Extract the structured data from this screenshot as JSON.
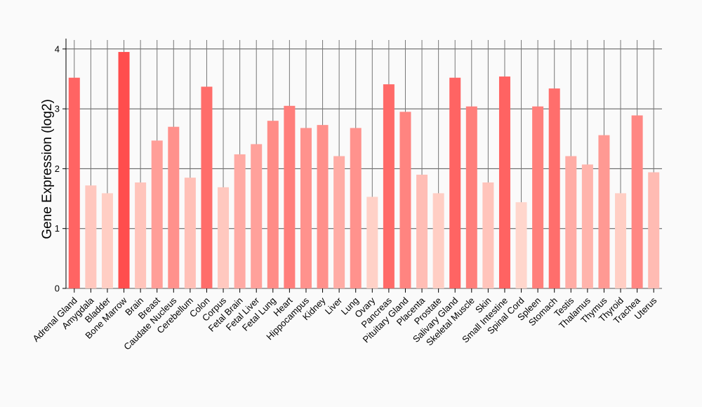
{
  "chart_data": {
    "type": "bar",
    "ylabel": "Gene Expression (log2)",
    "xlabel": "",
    "ylim": [
      0,
      4.15
    ],
    "yticks": [
      0,
      1,
      2,
      3,
      4
    ],
    "grid": true,
    "bar_color_low": "#ffd6cc",
    "bar_color_high": "#ff4d4d",
    "categories": [
      "Adrenal Gland",
      "Amygdala",
      "Bladder",
      "Bone Marrow",
      "Brain",
      "Breast",
      "Caudate Nucleus",
      "Cerebellum",
      "Colon",
      "Corpus",
      "Fetal Brain",
      "Fetal Liver",
      "Fetal Lung",
      "Heart",
      "Hippocampus",
      "Kidney",
      "Liver",
      "Lung",
      "Ovary",
      "Pancreas",
      "Pituitary Gland",
      "Placenta",
      "Prostate",
      "Salivary Gland",
      "Skeletal Muscle",
      "Skin",
      "Small Intestine",
      "Spinal Cord",
      "Spleen",
      "Stomach",
      "Testis",
      "Thalamus",
      "Thymus",
      "Thyroid",
      "Trachea",
      "Uterus"
    ],
    "values": [
      3.52,
      1.72,
      1.59,
      3.95,
      1.77,
      2.47,
      2.7,
      1.85,
      3.37,
      1.69,
      2.24,
      2.41,
      2.8,
      3.05,
      2.68,
      2.73,
      2.21,
      2.68,
      1.53,
      3.41,
      2.95,
      1.9,
      1.59,
      3.52,
      3.04,
      1.77,
      3.54,
      1.44,
      3.04,
      3.34,
      2.21,
      2.07,
      2.56,
      1.59,
      2.89,
      1.94
    ]
  }
}
